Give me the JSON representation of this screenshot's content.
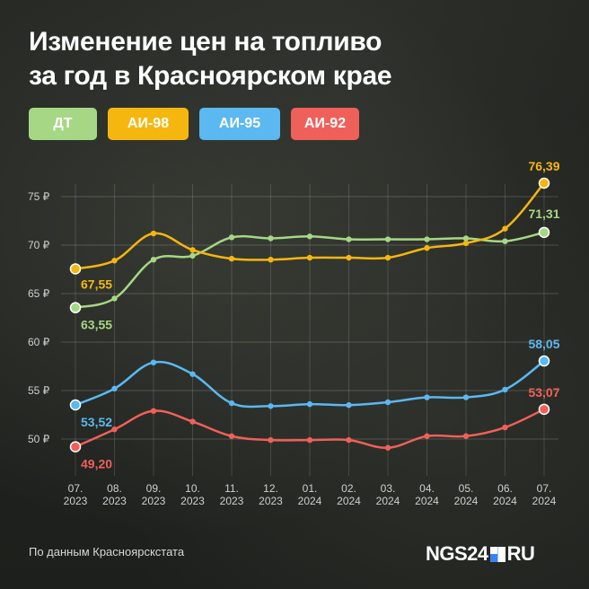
{
  "header": {
    "title_line1": "Изменение цен на топливо",
    "title_line2": "за год в Красноярском крае"
  },
  "legend": [
    {
      "label": "ДТ",
      "color": "#a6d785"
    },
    {
      "label": "АИ-98",
      "color": "#f5b70f"
    },
    {
      "label": "АИ-95",
      "color": "#5bb8f0"
    },
    {
      "label": "АИ-92",
      "color": "#f0605a"
    }
  ],
  "footer": {
    "source": "По данным Красноярскстата",
    "logo_prefix": "NGS24",
    "logo_suffix": "RU"
  },
  "chart_data": {
    "type": "line",
    "x_month": [
      "07.",
      "08.",
      "09.",
      "10.",
      "11.",
      "12.",
      "01.",
      "02.",
      "03.",
      "04.",
      "05.",
      "06.",
      "07."
    ],
    "x_year": [
      "2023",
      "2023",
      "2023",
      "2023",
      "2023",
      "2023",
      "2024",
      "2024",
      "2024",
      "2024",
      "2024",
      "2024",
      "2024"
    ],
    "y_ticks": [
      "75 ₽",
      "70 ₽",
      "65 ₽",
      "60 ₽",
      "55 ₽",
      "50 ₽"
    ],
    "y_tick_values": [
      75,
      70,
      65,
      60,
      55,
      50
    ],
    "ylim": [
      48.2,
      76.2
    ],
    "series": [
      {
        "name": "ДТ",
        "color": "#a6d785",
        "values": [
          63.55,
          64.5,
          68.5,
          68.9,
          70.8,
          70.7,
          70.9,
          70.6,
          70.6,
          70.6,
          70.7,
          70.4,
          71.31
        ],
        "start_label": "63,55",
        "end_label": "71,31"
      },
      {
        "name": "АИ-98",
        "color": "#f5b70f",
        "values": [
          67.55,
          68.4,
          71.2,
          69.5,
          68.6,
          68.5,
          68.7,
          68.7,
          68.7,
          69.7,
          70.2,
          71.7,
          76.39
        ],
        "start_label": "67,55",
        "end_label": "76,39"
      },
      {
        "name": "АИ-95",
        "color": "#5bb8f0",
        "values": [
          53.52,
          55.2,
          57.9,
          56.7,
          53.7,
          53.4,
          53.6,
          53.5,
          53.8,
          54.3,
          54.3,
          55.1,
          58.05
        ],
        "start_label": "53,52",
        "end_label": "58,05"
      },
      {
        "name": "АИ-92",
        "color": "#f0605a",
        "values": [
          49.2,
          51.0,
          52.9,
          51.8,
          50.3,
          49.9,
          49.9,
          49.9,
          49.1,
          50.3,
          50.3,
          51.2,
          53.07
        ],
        "start_label": "49,20",
        "end_label": "53,07"
      }
    ]
  }
}
